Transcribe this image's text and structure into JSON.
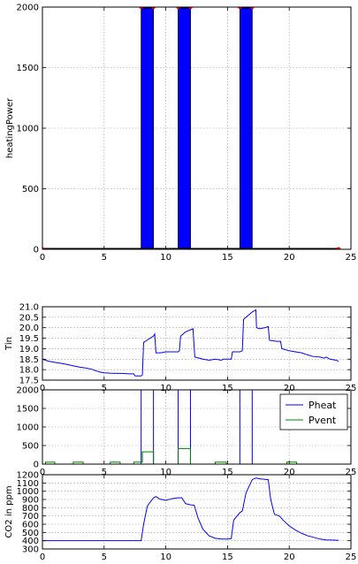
{
  "chart_data": [
    {
      "type": "bar",
      "ylabel": "heatingPower",
      "xlim": [
        0,
        25
      ],
      "ylim": [
        0,
        2000
      ],
      "xticks": [
        0,
        5,
        10,
        15,
        20,
        25
      ],
      "yticks": [
        0,
        500,
        1000,
        1500,
        2000
      ],
      "grid": true,
      "bars": [
        {
          "start": 8.0,
          "end": 9.0,
          "value": 2000
        },
        {
          "start": 11.0,
          "end": 12.0,
          "value": 2000
        },
        {
          "start": 16.0,
          "end": 17.0,
          "value": 2000
        }
      ],
      "baseline_markers_x": [
        0,
        24
      ],
      "top_markers_x": [
        8.0,
        9.0,
        11.0,
        12.0,
        16.0,
        17.0
      ],
      "colors": {
        "bar": "#0000ff",
        "baseline": "#000000",
        "marker": "#ff0000"
      }
    },
    {
      "type": "line",
      "ylabel": "Tin",
      "xlim": [
        0,
        25
      ],
      "ylim": [
        17.5,
        21.0
      ],
      "xticks": [
        0,
        5,
        10,
        15,
        20,
        25
      ],
      "yticks": [
        "17.5",
        "18.0",
        "18.5",
        "19.0",
        "19.5",
        "20.0",
        "20.5",
        "21.0"
      ],
      "grid": true,
      "series": [
        {
          "color": "#0000ff",
          "points": [
            [
              0,
              18.5
            ],
            [
              0.25,
              18.45
            ],
            [
              0.5,
              18.4
            ],
            [
              1,
              18.35
            ],
            [
              1.5,
              18.3
            ],
            [
              2,
              18.25
            ],
            [
              2.5,
              18.18
            ],
            [
              3,
              18.12
            ],
            [
              3.5,
              18.08
            ],
            [
              4,
              18.02
            ],
            [
              4.3,
              17.95
            ],
            [
              4.7,
              17.88
            ],
            [
              5,
              17.85
            ],
            [
              5.5,
              17.83
            ],
            [
              6,
              17.82
            ],
            [
              6.5,
              17.82
            ],
            [
              7,
              17.8
            ],
            [
              7.4,
              17.8
            ],
            [
              7.5,
              17.7
            ],
            [
              8,
              17.7
            ],
            [
              8.1,
              17.75
            ],
            [
              8.2,
              19.3
            ],
            [
              8.6,
              19.45
            ],
            [
              9.0,
              19.6
            ],
            [
              9.1,
              19.7
            ],
            [
              9.2,
              18.8
            ],
            [
              9.6,
              18.8
            ],
            [
              10,
              18.85
            ],
            [
              11,
              18.85
            ],
            [
              11.1,
              18.9
            ],
            [
              11.2,
              19.6
            ],
            [
              11.6,
              19.8
            ],
            [
              12.2,
              19.95
            ],
            [
              12.35,
              18.6
            ],
            [
              12.7,
              18.55
            ],
            [
              13,
              18.5
            ],
            [
              13.5,
              18.45
            ],
            [
              14,
              18.5
            ],
            [
              14.5,
              18.45
            ],
            [
              14.65,
              18.5
            ],
            [
              15,
              18.5
            ],
            [
              15.3,
              18.5
            ],
            [
              15.4,
              18.85
            ],
            [
              16,
              18.85
            ],
            [
              16.2,
              18.9
            ],
            [
              16.3,
              20.4
            ],
            [
              16.6,
              20.55
            ],
            [
              17.0,
              20.75
            ],
            [
              17.3,
              20.85
            ],
            [
              17.35,
              20.0
            ],
            [
              17.6,
              19.95
            ],
            [
              18,
              20.0
            ],
            [
              18.3,
              20.05
            ],
            [
              18.4,
              19.4
            ],
            [
              19,
              19.35
            ],
            [
              19.3,
              19.35
            ],
            [
              19.4,
              19.0
            ],
            [
              20,
              18.9
            ],
            [
              20.5,
              18.85
            ],
            [
              21,
              18.8
            ],
            [
              21.5,
              18.7
            ],
            [
              22,
              18.62
            ],
            [
              22.5,
              18.6
            ],
            [
              22.8,
              18.55
            ],
            [
              23,
              18.6
            ],
            [
              23.3,
              18.5
            ],
            [
              23.8,
              18.45
            ],
            [
              24,
              18.4
            ]
          ]
        }
      ]
    },
    {
      "type": "line",
      "xlim": [
        0,
        25
      ],
      "ylim": [
        0,
        2000
      ],
      "xticks": [
        0,
        5,
        10,
        15,
        20,
        25
      ],
      "yticks": [
        0,
        500,
        1000,
        1500,
        2000
      ],
      "grid": true,
      "legend": {
        "position": "top-right",
        "entries": [
          "Pheat",
          "Pvent"
        ]
      },
      "series": [
        {
          "name": "Pheat",
          "color": "#0000ff",
          "points": [
            [
              0,
              0
            ],
            [
              8.0,
              0
            ],
            [
              8.0,
              2000
            ],
            [
              9.0,
              2000
            ],
            [
              9.0,
              0
            ],
            [
              11.0,
              0
            ],
            [
              11.0,
              2000
            ],
            [
              12.0,
              2000
            ],
            [
              12.0,
              0
            ],
            [
              16.0,
              0
            ],
            [
              16.0,
              2000
            ],
            [
              17.0,
              2000
            ],
            [
              17.0,
              0
            ],
            [
              24,
              0
            ]
          ]
        },
        {
          "name": "Pvent",
          "color": "#008000",
          "points": [
            [
              0,
              0
            ],
            [
              0.25,
              0
            ],
            [
              0.25,
              55
            ],
            [
              1.0,
              55
            ],
            [
              1.0,
              0
            ],
            [
              2.5,
              0
            ],
            [
              2.5,
              55
            ],
            [
              3.3,
              55
            ],
            [
              3.3,
              0
            ],
            [
              5.5,
              0
            ],
            [
              5.5,
              55
            ],
            [
              6.3,
              55
            ],
            [
              6.3,
              0
            ],
            [
              7.4,
              0
            ],
            [
              7.4,
              55
            ],
            [
              8.1,
              55
            ],
            [
              8.1,
              330
            ],
            [
              9.0,
              330
            ],
            [
              9.0,
              0
            ],
            [
              11.0,
              0
            ],
            [
              11.0,
              420
            ],
            [
              12.0,
              420
            ],
            [
              12.0,
              0
            ],
            [
              14.0,
              0
            ],
            [
              14.0,
              55
            ],
            [
              14.9,
              55
            ],
            [
              14.9,
              0
            ],
            [
              19.8,
              0
            ],
            [
              19.8,
              55
            ],
            [
              20.6,
              55
            ],
            [
              20.6,
              0
            ],
            [
              24,
              0
            ]
          ]
        }
      ]
    },
    {
      "type": "line",
      "ylabel": "CO2 in ppm",
      "xlim": [
        0,
        25
      ],
      "ylim": [
        300,
        1200
      ],
      "xticks": [
        0,
        5,
        10,
        15,
        20,
        25
      ],
      "yticks": [
        300,
        400,
        500,
        600,
        700,
        800,
        900,
        1000,
        1100,
        1200
      ],
      "grid": true,
      "series": [
        {
          "color": "#0000ff",
          "points": [
            [
              0,
              400
            ],
            [
              8.0,
              400
            ],
            [
              8.2,
              600
            ],
            [
              8.5,
              820
            ],
            [
              9.0,
              920
            ],
            [
              9.2,
              935
            ],
            [
              9.5,
              905
            ],
            [
              10.0,
              890
            ],
            [
              10.5,
              910
            ],
            [
              11.0,
              920
            ],
            [
              11.3,
              920
            ],
            [
              11.6,
              850
            ],
            [
              12.0,
              835
            ],
            [
              12.3,
              830
            ],
            [
              12.6,
              680
            ],
            [
              13.0,
              540
            ],
            [
              13.5,
              460
            ],
            [
              14.0,
              430
            ],
            [
              14.5,
              420
            ],
            [
              15.0,
              420
            ],
            [
              15.3,
              425
            ],
            [
              15.5,
              650
            ],
            [
              16.0,
              740
            ],
            [
              16.2,
              760
            ],
            [
              16.5,
              980
            ],
            [
              17.0,
              1140
            ],
            [
              17.3,
              1160
            ],
            [
              17.6,
              1150
            ],
            [
              18.3,
              1140
            ],
            [
              18.5,
              900
            ],
            [
              18.8,
              720
            ],
            [
              19.2,
              700
            ],
            [
              19.5,
              650
            ],
            [
              20.0,
              580
            ],
            [
              20.5,
              530
            ],
            [
              21.0,
              490
            ],
            [
              21.5,
              460
            ],
            [
              22.0,
              440
            ],
            [
              22.5,
              420
            ],
            [
              23.0,
              410
            ],
            [
              24.0,
              405
            ]
          ]
        }
      ]
    }
  ]
}
